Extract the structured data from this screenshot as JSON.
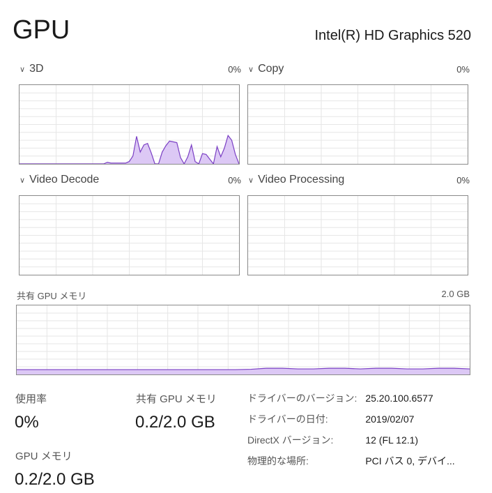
{
  "header": {
    "title": "GPU",
    "adapter": "Intel(R) HD Graphics 520"
  },
  "engines": [
    {
      "label": "3D",
      "value": "0%",
      "samples": [
        0,
        0,
        0,
        0,
        0,
        0,
        0,
        0,
        0,
        0,
        0,
        0,
        0,
        0,
        0,
        0,
        0,
        0,
        0,
        0,
        0,
        0,
        0,
        0,
        2,
        1,
        1,
        1,
        1,
        1,
        3,
        10,
        35,
        15,
        24,
        26,
        14,
        0,
        0,
        15,
        23,
        29,
        28,
        27,
        8,
        0,
        9,
        24,
        3,
        0,
        13,
        12,
        6,
        0,
        22,
        9,
        20,
        36,
        30,
        12,
        0
      ]
    },
    {
      "label": "Copy",
      "value": "0%",
      "samples": []
    },
    {
      "label": "Video Decode",
      "value": "0%",
      "samples": []
    },
    {
      "label": "Video Processing",
      "value": "0%",
      "samples": []
    }
  ],
  "shared_graph": {
    "label": "共有 GPU メモリ",
    "max_label": "2.0 GB",
    "max_gb": 2.0,
    "samples_gb": [
      0.14,
      0.14,
      0.14,
      0.14,
      0.14,
      0.14,
      0.14,
      0.14,
      0.14,
      0.14,
      0.14,
      0.14,
      0.14,
      0.14,
      0.14,
      0.15,
      0.18,
      0.18,
      0.16,
      0.16,
      0.18,
      0.18,
      0.16,
      0.18,
      0.18,
      0.16,
      0.16,
      0.18,
      0.18,
      0.16
    ]
  },
  "colors": {
    "line": "#7a3fc4",
    "fill": "#dcc8f5",
    "grid": "#e6e6e6"
  },
  "stats": {
    "usage": {
      "label": "使用率",
      "value": "0%"
    },
    "shared": {
      "label": "共有 GPU メモリ",
      "value": "0.2/2.0 GB"
    },
    "gpu_mem": {
      "label": "GPU メモリ",
      "value": "0.2/2.0 GB"
    }
  },
  "details": [
    {
      "key": "ドライバーのバージョン:",
      "value": "25.20.100.6577"
    },
    {
      "key": "ドライバーの日付:",
      "value": "2019/02/07"
    },
    {
      "key": "DirectX バージョン:",
      "value": "12 (FL 12.1)"
    },
    {
      "key": "物理的な場所:",
      "value": "PCI バス 0, デバイ..."
    }
  ]
}
